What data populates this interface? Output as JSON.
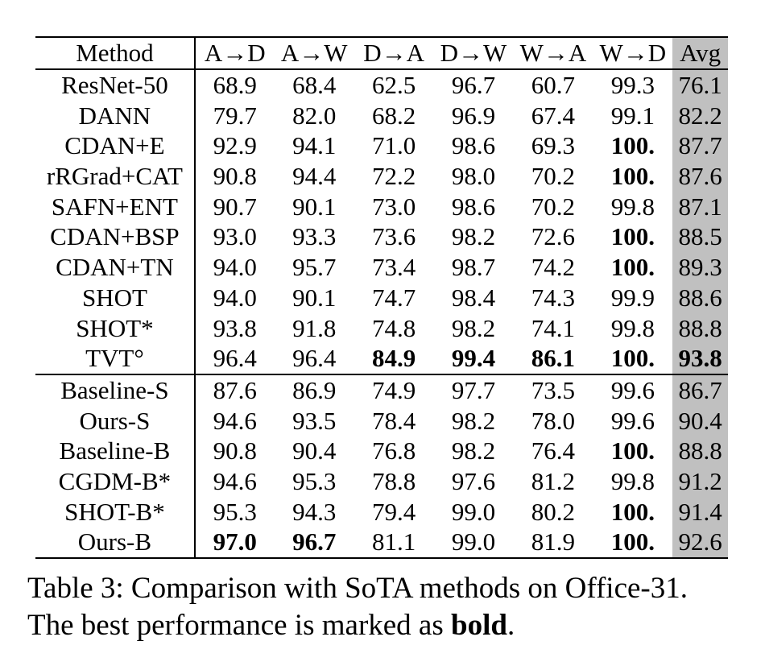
{
  "table": {
    "headers": [
      "Method",
      "A→D",
      "A→W",
      "D→A",
      "D→W",
      "W→A",
      "W→D",
      "Avg"
    ],
    "group_a": [
      {
        "method": "ResNet-50",
        "vals": [
          "68.9",
          "68.4",
          "62.5",
          "96.7",
          "60.7",
          "99.3",
          "76.1"
        ],
        "bold": [
          false,
          false,
          false,
          false,
          false,
          false,
          false
        ]
      },
      {
        "method": "DANN",
        "vals": [
          "79.7",
          "82.0",
          "68.2",
          "96.9",
          "67.4",
          "99.1",
          "82.2"
        ],
        "bold": [
          false,
          false,
          false,
          false,
          false,
          false,
          false
        ]
      },
      {
        "method": "CDAN+E",
        "vals": [
          "92.9",
          "94.1",
          "71.0",
          "98.6",
          "69.3",
          "100.",
          "87.7"
        ],
        "bold": [
          false,
          false,
          false,
          false,
          false,
          true,
          false
        ]
      },
      {
        "method": "rRGrad+CAT",
        "vals": [
          "90.8",
          "94.4",
          "72.2",
          "98.0",
          "70.2",
          "100.",
          "87.6"
        ],
        "bold": [
          false,
          false,
          false,
          false,
          false,
          true,
          false
        ]
      },
      {
        "method": "SAFN+ENT",
        "vals": [
          "90.7",
          "90.1",
          "73.0",
          "98.6",
          "70.2",
          "99.8",
          "87.1"
        ],
        "bold": [
          false,
          false,
          false,
          false,
          false,
          false,
          false
        ]
      },
      {
        "method": "CDAN+BSP",
        "vals": [
          "93.0",
          "93.3",
          "73.6",
          "98.2",
          "72.6",
          "100.",
          "88.5"
        ],
        "bold": [
          false,
          false,
          false,
          false,
          false,
          true,
          false
        ]
      },
      {
        "method": "CDAN+TN",
        "vals": [
          "94.0",
          "95.7",
          "73.4",
          "98.7",
          "74.2",
          "100.",
          "89.3"
        ],
        "bold": [
          false,
          false,
          false,
          false,
          false,
          true,
          false
        ]
      },
      {
        "method": "SHOT",
        "vals": [
          "94.0",
          "90.1",
          "74.7",
          "98.4",
          "74.3",
          "99.9",
          "88.6"
        ],
        "bold": [
          false,
          false,
          false,
          false,
          false,
          false,
          false
        ]
      },
      {
        "method": "SHOT*",
        "vals": [
          "93.8",
          "91.8",
          "74.8",
          "98.2",
          "74.1",
          "99.8",
          "88.8"
        ],
        "bold": [
          false,
          false,
          false,
          false,
          false,
          false,
          false
        ]
      },
      {
        "method": "TVT°",
        "vals": [
          "96.4",
          "96.4",
          "84.9",
          "99.4",
          "86.1",
          "100.",
          "93.8"
        ],
        "bold": [
          false,
          false,
          true,
          true,
          true,
          true,
          true
        ]
      }
    ],
    "group_b": [
      {
        "method": "Baseline-S",
        "vals": [
          "87.6",
          "86.9",
          "74.9",
          "97.7",
          "73.5",
          "99.6",
          "86.7"
        ],
        "bold": [
          false,
          false,
          false,
          false,
          false,
          false,
          false
        ]
      },
      {
        "method": "Ours-S",
        "vals": [
          "94.6",
          "93.5",
          "78.4",
          "98.2",
          "78.0",
          "99.6",
          "90.4"
        ],
        "bold": [
          false,
          false,
          false,
          false,
          false,
          false,
          false
        ]
      },
      {
        "method": "Baseline-B",
        "vals": [
          "90.8",
          "90.4",
          "76.8",
          "98.2",
          "76.4",
          "100.",
          "88.8"
        ],
        "bold": [
          false,
          false,
          false,
          false,
          false,
          true,
          false
        ]
      },
      {
        "method": "CGDM-B*",
        "vals": [
          "94.6",
          "95.3",
          "78.8",
          "97.6",
          "81.2",
          "99.8",
          "91.2"
        ],
        "bold": [
          false,
          false,
          false,
          false,
          false,
          false,
          false
        ]
      },
      {
        "method": "SHOT-B*",
        "vals": [
          "95.3",
          "94.3",
          "79.4",
          "99.0",
          "80.2",
          "100.",
          "91.4"
        ],
        "bold": [
          false,
          false,
          false,
          false,
          false,
          true,
          false
        ]
      },
      {
        "method": "Ours-B",
        "vals": [
          "97.0",
          "96.7",
          "81.1",
          "99.0",
          "81.9",
          "100.",
          "92.6"
        ],
        "bold": [
          true,
          true,
          false,
          false,
          false,
          true,
          false
        ]
      }
    ]
  },
  "caption": {
    "line1": "Table 3: Comparison with SoTA methods on Office-31.",
    "line2_prefix": "The best performance is marked as ",
    "line2_bold": "bold",
    "line2_suffix": "."
  },
  "colors": {
    "avg_column_bg": "#c0c0c0"
  }
}
